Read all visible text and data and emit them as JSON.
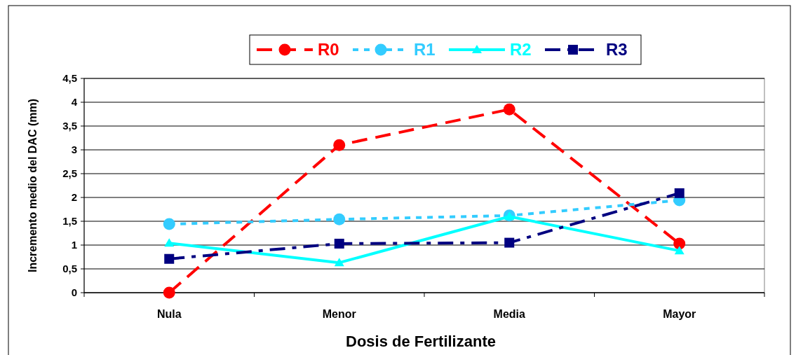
{
  "chart_data": {
    "type": "line",
    "xlabel": "Dosis de Fertilizante",
    "ylabel": "Incremento medio del DAC (mm)",
    "categories": [
      "Nula",
      "Menor",
      "Media",
      "Mayor"
    ],
    "series": [
      {
        "name": "R0",
        "color": "#ff0000",
        "values": [
          0,
          3.1,
          3.85,
          1.03
        ],
        "marker": "circle",
        "line_style": "dashed"
      },
      {
        "name": "R1",
        "color": "#33ccff",
        "values": [
          1.44,
          1.54,
          1.62,
          1.94
        ],
        "marker": "circle",
        "line_style": "dotted"
      },
      {
        "name": "R2",
        "color": "#00ffff",
        "values": [
          1.04,
          0.63,
          1.6,
          0.88
        ],
        "marker": "triangle",
        "line_style": "solid"
      },
      {
        "name": "R3",
        "color": "#000080",
        "values": [
          0.71,
          1.03,
          1.05,
          2.09
        ],
        "marker": "square",
        "line_style": "dashdot"
      }
    ],
    "ylim": [
      0,
      4.5
    ],
    "yticks": [
      0,
      {
        "value": 0.5,
        "label": "0,5"
      },
      1,
      {
        "value": 1.5,
        "label": "1,5"
      },
      2,
      {
        "value": 2.5,
        "label": "2,5"
      },
      3,
      {
        "value": 3.5,
        "label": "3,5"
      },
      4,
      {
        "value": 4.5,
        "label": "4,5"
      }
    ],
    "grid": "y",
    "legend": "top"
  }
}
